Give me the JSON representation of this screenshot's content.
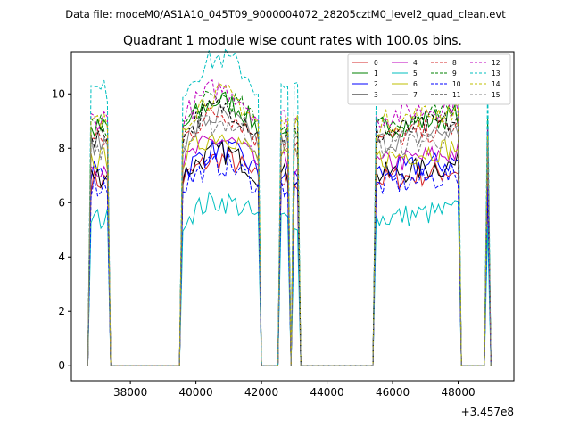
{
  "suptitle": "Data file: modeM0/AS1A10_045T09_9000004072_28205cztM0_level2_quad_clean.evt",
  "chart_data": {
    "type": "line",
    "title": "Quadrant 1 module wise count rates with 100.0s bins.",
    "xlabel": "",
    "ylabel": "",
    "x_offset_label": "+3.457e8",
    "xlim": [
      36200,
      49700
    ],
    "ylim": [
      -0.55,
      11.55
    ],
    "xticks": [
      38000,
      40000,
      42000,
      44000,
      46000,
      48000
    ],
    "yticks": [
      0,
      2,
      4,
      6,
      8,
      10
    ],
    "grid": false,
    "legend": {
      "placement": "top-right",
      "columns": 4
    },
    "segments": [
      {
        "x_start": 36800,
        "x_end": 37300
      },
      {
        "x_start": 39600,
        "x_end": 41900
      },
      {
        "x_start": 42600,
        "x_end": 42800
      },
      {
        "x_start": 43000,
        "x_end": 43100
      },
      {
        "x_start": 45500,
        "x_end": 48000
      },
      {
        "x_start": 48900,
        "x_end": 48900
      }
    ],
    "gap_value": 0,
    "series": [
      {
        "name": "0",
        "color": "#d62728",
        "dash": "solid",
        "level": 6.8
      },
      {
        "name": "1",
        "color": "#008000",
        "dash": "solid",
        "level": 8.7
      },
      {
        "name": "2",
        "color": "#0000ff",
        "dash": "solid",
        "level": 7.1
      },
      {
        "name": "3",
        "color": "#000000",
        "dash": "solid",
        "level": 7.0
      },
      {
        "name": "4",
        "color": "#bf00bf",
        "dash": "solid",
        "level": 7.4
      },
      {
        "name": "5",
        "color": "#00bfbf",
        "dash": "solid",
        "level": 5.4
      },
      {
        "name": "6",
        "color": "#bfbf00",
        "dash": "solid",
        "level": 7.6
      },
      {
        "name": "7",
        "color": "#7f7f7f",
        "dash": "solid",
        "level": 8.2
      },
      {
        "name": "8",
        "color": "#d62728",
        "dash": "dashed",
        "level": 8.3
      },
      {
        "name": "9",
        "color": "#008000",
        "dash": "dashed",
        "level": 8.8
      },
      {
        "name": "10",
        "color": "#0000ff",
        "dash": "dashed",
        "level": 6.6
      },
      {
        "name": "11",
        "color": "#000000",
        "dash": "dashed",
        "level": 8.5
      },
      {
        "name": "12",
        "color": "#bf00bf",
        "dash": "dashed",
        "level": 9.1
      },
      {
        "name": "13",
        "color": "#00bfbf",
        "dash": "dashed",
        "level": 10.1
      },
      {
        "name": "14",
        "color": "#bfbf00",
        "dash": "dashed",
        "level": 8.9
      },
      {
        "name": "15",
        "color": "#7f7f7f",
        "dash": "dashed",
        "level": 8.0
      }
    ]
  }
}
